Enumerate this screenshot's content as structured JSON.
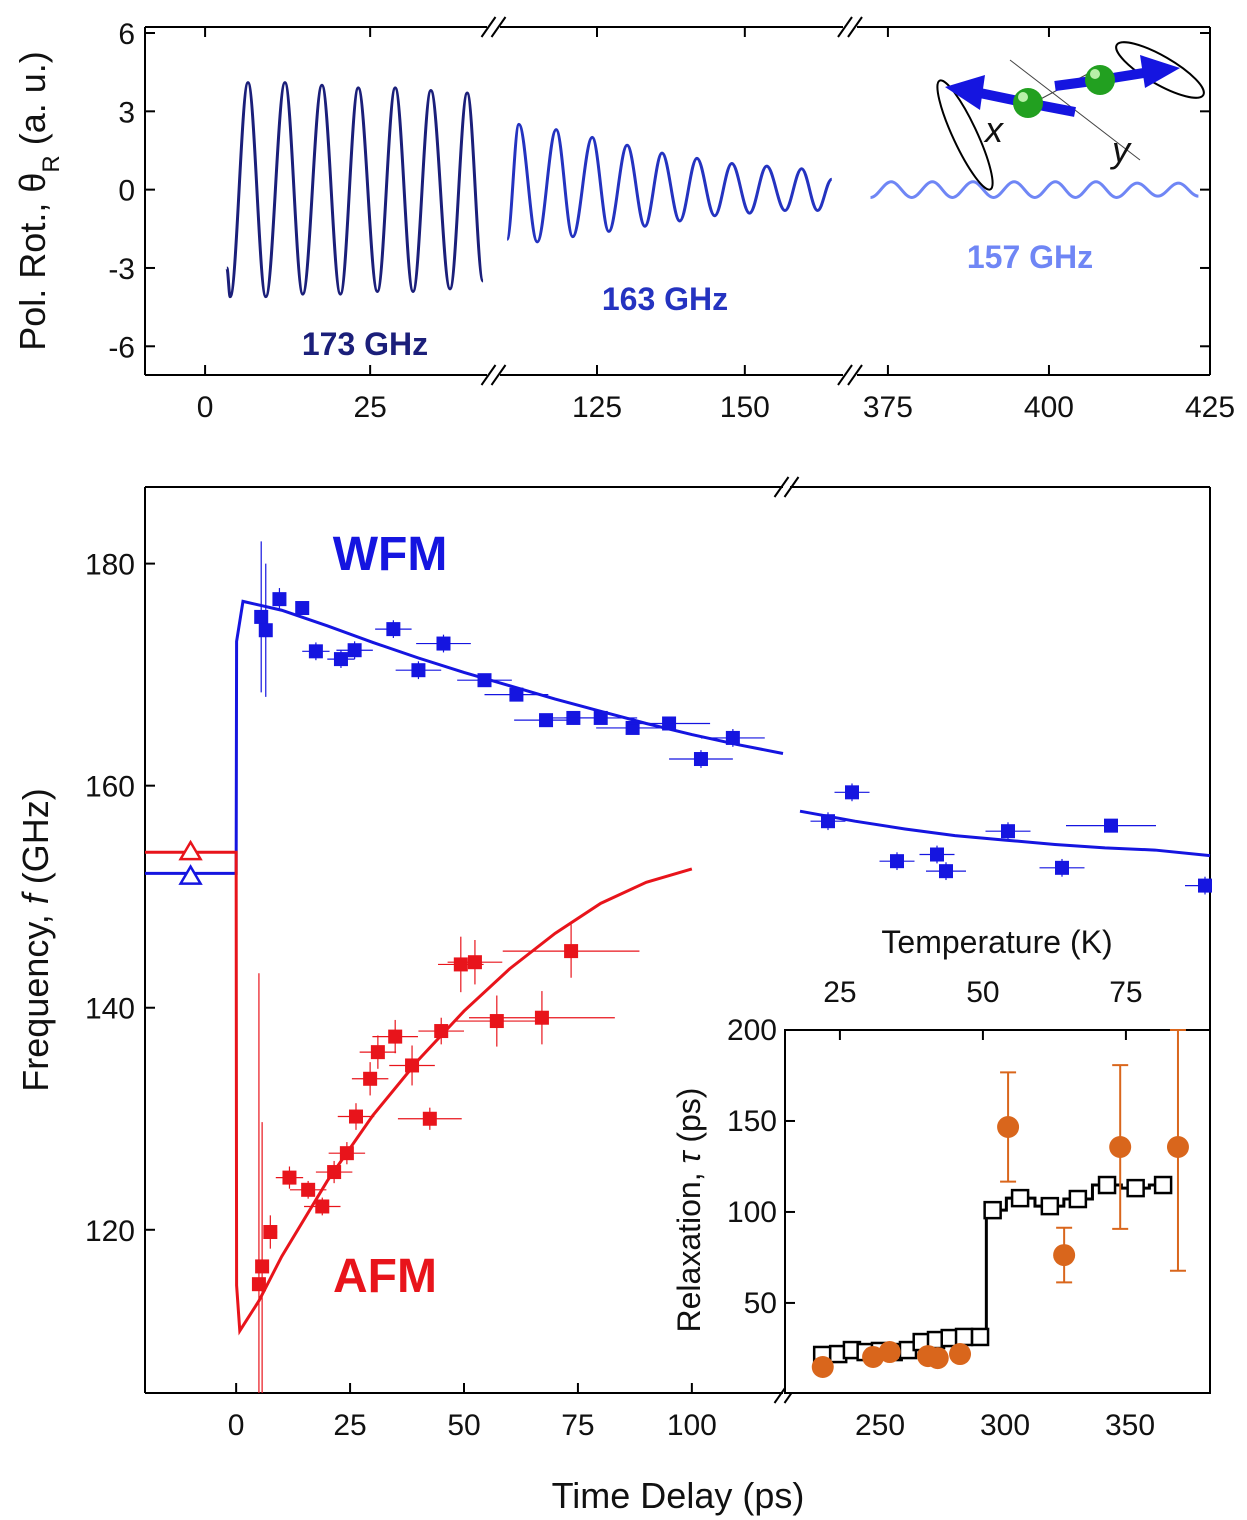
{
  "chart_data": [
    {
      "type": "line",
      "ylabel": [
        "Pol. Rot., ",
        "θ",
        "R",
        " (a. u.)"
      ],
      "ylim": [
        -7.1,
        6.23
      ],
      "yticks": [
        -6,
        -3,
        0,
        3,
        6
      ],
      "x_segments": [
        {
          "xlim": [
            -9.1,
            42.7
          ],
          "xticks": [
            0,
            25
          ]
        },
        {
          "xlim": [
            108.6,
            166.6
          ],
          "xticks": [
            125,
            150
          ]
        },
        {
          "xlim": [
            370.2,
            425
          ],
          "xticks": [
            375,
            400,
            425
          ]
        }
      ],
      "series": [
        {
          "name": "173 GHz",
          "color": "#1b1f7a",
          "x": [
            3.3,
            3.8,
            6.5,
            9.2,
            12.1,
            14.8,
            17.7,
            20.5,
            23.2,
            26.1,
            28.8,
            31.5,
            34.2,
            37.1,
            39.7,
            42.1
          ],
          "values": [
            -3.0,
            -4.1,
            4.1,
            -4.1,
            4.1,
            -4.0,
            4.0,
            -4.0,
            3.9,
            -3.9,
            3.9,
            -3.9,
            3.8,
            -3.8,
            3.7,
            -3.5
          ]
        },
        {
          "name": "163 GHz",
          "color": "#2433c0",
          "x": [
            109.8,
            111.8,
            114.9,
            118.1,
            120.9,
            124.2,
            127.0,
            130.1,
            133.1,
            136.0,
            139.0,
            141.9,
            144.9,
            147.8,
            150.8,
            153.7,
            156.8,
            159.6,
            162.3,
            164.7
          ],
          "values": [
            -1.9,
            2.5,
            -2.0,
            2.3,
            -1.8,
            2.0,
            -1.6,
            1.7,
            -1.4,
            1.4,
            -1.2,
            1.2,
            -1.0,
            1.0,
            -0.9,
            0.9,
            -0.8,
            0.8,
            -0.8,
            0.4
          ]
        },
        {
          "name": "157 GHz",
          "color": "#6f86f5",
          "x": [
            372.3,
            375.5,
            378.7,
            381.9,
            385.0,
            388.2,
            391.4,
            394.6,
            397.8,
            401.0,
            404.1,
            407.3,
            410.5,
            413.7,
            416.9,
            420.1,
            423.2
          ],
          "values": [
            -0.3,
            0.3,
            -0.3,
            0.3,
            -0.3,
            0.3,
            -0.3,
            0.3,
            -0.3,
            0.3,
            -0.3,
            0.3,
            -0.3,
            0.25,
            -0.25,
            0.25,
            -0.25
          ]
        }
      ],
      "diagram_labels": [
        "x",
        "y"
      ]
    },
    {
      "type": "scatter",
      "xlabel": "Time Delay (ps)",
      "ylabel": [
        "Frequency, ",
        "f",
        " (GHz)"
      ],
      "ylim": [
        105.3,
        186.9
      ],
      "yticks": [
        120,
        140,
        160,
        180
      ],
      "x_segments": [
        {
          "xlim": [
            -20,
            120
          ],
          "xticks": [
            0,
            25,
            50,
            75,
            100
          ]
        },
        {
          "xlim": [
            214,
            382
          ],
          "xticks": [
            250,
            300,
            350
          ]
        }
      ],
      "series": [
        {
          "name": "WFM",
          "color": "#1515e0",
          "x": [
            5.5,
            6.5,
            9.5,
            14.5,
            17.5,
            23,
            26,
            34.5,
            40,
            45.5,
            54.5,
            61.5,
            68,
            74,
            80,
            87,
            95,
            102,
            109,
            229.2,
            238.8,
            256.8,
            272.8,
            276.4,
            301.2,
            322.8,
            342.4,
            380
          ],
          "values": [
            175.2,
            174.0,
            176.8,
            176.0,
            172.1,
            171.4,
            172.2,
            174.1,
            170.4,
            172.8,
            169.5,
            168.2,
            165.9,
            166.1,
            166.1,
            165.2,
            165.6,
            162.4,
            164.3,
            156.8,
            159.4,
            153.2,
            153.8,
            152.3,
            155.9,
            152.6,
            156.4,
            151.0
          ],
          "x_err": [
            1,
            1,
            1,
            1,
            3,
            3,
            4,
            4,
            5,
            6,
            6,
            7,
            7,
            7,
            8,
            8,
            9,
            7,
            7,
            7,
            7,
            7,
            7,
            8,
            9,
            9,
            18,
            8
          ],
          "y_err": [
            6.8,
            6,
            1,
            0.6,
            0.8,
            0.8,
            0.8,
            0.8,
            0.8,
            0.8,
            0.6,
            0.6,
            0.6,
            0.6,
            0.5,
            0.5,
            0.5,
            0.8,
            0.8,
            0.8,
            0.8,
            0.8,
            0.8,
            0.8,
            0.8,
            0.8,
            0.5,
            0.8
          ]
        },
        {
          "name": "AFM",
          "color": "#e8141b",
          "x": [
            5,
            5.7,
            7.5,
            11.7,
            15.8,
            18.9,
            21.5,
            24.3,
            26.3,
            29.4,
            31.1,
            34.9,
            38.6,
            42.5,
            45,
            49.3,
            52.4,
            57.2,
            67.1,
            73.5
          ],
          "values": [
            115.1,
            116.7,
            119.8,
            124.7,
            123.6,
            122.1,
            125.2,
            126.9,
            130.2,
            133.6,
            136.0,
            137.4,
            134.8,
            130.0,
            137.9,
            143.9,
            144.1,
            138.8,
            139.1,
            145.1
          ],
          "x_err": [
            0.5,
            1,
            1.5,
            3,
            4,
            4,
            4,
            4,
            4,
            4,
            4,
            5,
            5,
            7,
            5,
            5,
            6,
            9,
            16,
            15
          ],
          "y_err": [
            28,
            13,
            1.5,
            1,
            0.8,
            0.8,
            1,
            1,
            1.2,
            1.5,
            1.5,
            1.5,
            1.8,
            1,
            1.2,
            2.5,
            2,
            2.3,
            2.4,
            2.4
          ]
        }
      ],
      "fits": [
        {
          "color": "#1515e0",
          "x": [
            -20,
            0,
            0.1,
            1.5,
            10,
            20,
            30,
            40,
            50,
            60,
            70,
            80,
            90,
            100,
            110,
            120
          ],
          "values": [
            152.1,
            152.1,
            173,
            176.6,
            175.8,
            174.4,
            172.9,
            171.5,
            170.2,
            169.0,
            167.8,
            166.7,
            165.6,
            164.6,
            163.7,
            162.9
          ]
        },
        {
          "color": "#1515e0",
          "x": [
            218,
            240,
            260,
            280,
            300,
            320,
            340,
            360,
            382
          ],
          "values": [
            157.7,
            156.8,
            156.1,
            155.5,
            155.1,
            154.7,
            154.4,
            154.2,
            153.7
          ]
        },
        {
          "color": "#e8141b",
          "x": [
            -20,
            0,
            0.1,
            0.8,
            5,
            10,
            20,
            30,
            40,
            50,
            60,
            70,
            80,
            90,
            100
          ],
          "values": [
            154.0,
            154.0,
            115,
            110.9,
            113.6,
            117.6,
            124.4,
            130.3,
            135.3,
            139.7,
            143.5,
            146.7,
            149.4,
            151.3,
            152.5
          ]
        }
      ],
      "markers": [
        {
          "color": "#e8141b",
          "x": -10,
          "value": 154.1
        },
        {
          "color": "#1515e0",
          "x": -10,
          "value": 151.9
        }
      ]
    },
    {
      "type": "scatter",
      "xlabel": "Temperature (K)",
      "ylabel": [
        "Relaxation, ",
        "τ",
        " (ps)"
      ],
      "xlim": [
        15.4,
        89.7
      ],
      "xticks": [
        25,
        50,
        75
      ],
      "ylim": [
        0.5,
        200
      ],
      "yticks": [
        50,
        100,
        150,
        200
      ],
      "series": [
        {
          "marker": "open-square",
          "step": true,
          "color": "#000000",
          "x": [
            21.9,
            24.7,
            27.1,
            29.5,
            32.0,
            34.4,
            36.9,
            39.3,
            41.8,
            44.2,
            46.7,
            49.5,
            51.7,
            56.5,
            61.7,
            66.6,
            71.7,
            76.7,
            81.5
          ],
          "values": [
            21.4,
            21.9,
            24.1,
            23.0,
            23.6,
            23.0,
            24.1,
            28.5,
            29.6,
            30.7,
            31.3,
            31.3,
            101.0,
            107.6,
            103.2,
            107.1,
            114.8,
            113.1,
            114.8
          ]
        },
        {
          "marker": "circle",
          "step": false,
          "color": "#d9661c",
          "x": [
            22.0,
            30.8,
            33.7,
            40.4,
            42.1,
            46.0,
            54.4,
            64.2,
            74.0,
            84.1
          ],
          "values": [
            14.8,
            20.3,
            23.0,
            20.8,
            19.7,
            21.9,
            146.7,
            76.3,
            135.7,
            135.7
          ],
          "y_err": [
            0,
            0,
            0,
            0,
            0,
            0,
            30,
            15,
            45,
            68
          ]
        }
      ]
    }
  ]
}
